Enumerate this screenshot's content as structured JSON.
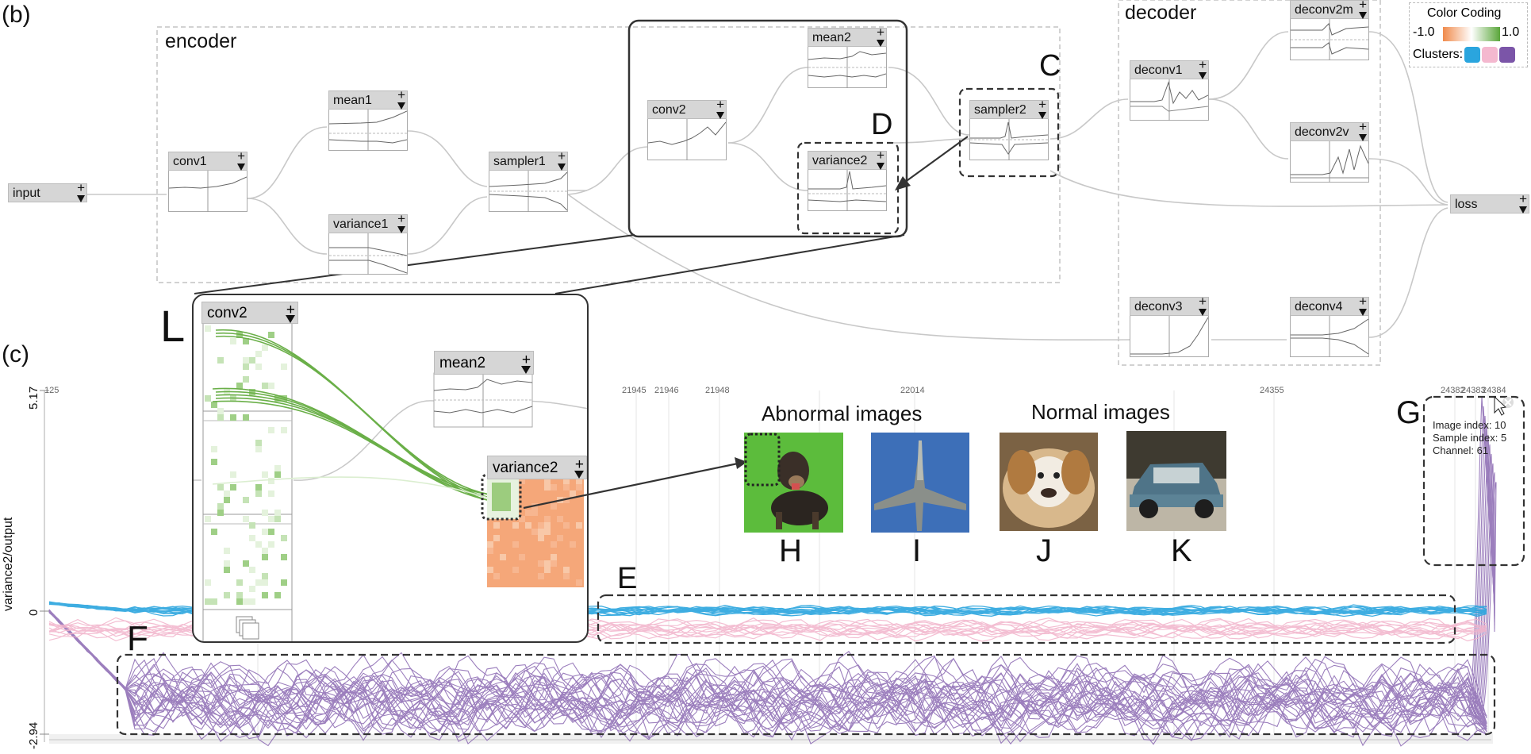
{
  "panel_b_label": "(b)",
  "panel_c_label": "(c)",
  "groups": {
    "encoder": "encoder",
    "decoder": "decoder"
  },
  "nodes": {
    "input": "input",
    "conv1": "conv1",
    "mean1": "mean1",
    "variance1": "variance1",
    "sampler1": "sampler1",
    "conv2": "conv2",
    "mean2": "mean2",
    "variance2": "variance2",
    "sampler2": "sampler2",
    "deconv1": "deconv1",
    "deconv2m": "deconv2m",
    "deconv2v": "deconv2v",
    "loss": "loss",
    "deconv3": "deconv3",
    "deconv4": "deconv4"
  },
  "node_controls": {
    "plus": "+"
  },
  "legend": {
    "title": "Color Coding",
    "min": "-1.0",
    "max": "1.0",
    "clusters_label": "Clusters:",
    "colors": {
      "negative": "#f08a4b",
      "positive": "#5aa63a",
      "cluster1": "#2aa5de",
      "cluster2": "#f4b8cf",
      "cluster3": "#7b55a8"
    }
  },
  "annotations": {
    "C": "C",
    "D": "D",
    "L": "L",
    "E": "E",
    "F": "F",
    "G": "G",
    "H": "H",
    "I": "I",
    "J": "J",
    "K": "K"
  },
  "zoom_nodes": {
    "conv2": "conv2",
    "mean2": "mean2",
    "variance2": "variance2"
  },
  "plot": {
    "ylabel": "variance2/output",
    "ymax": "5.17",
    "yzero": "0",
    "ymin": "-2.94",
    "x_ticks": [
      "125",
      "21945",
      "21946",
      "21948",
      "22014",
      "24355",
      "24382",
      "24383",
      "24384"
    ]
  },
  "images": {
    "abnormal_title": "Abnormal images",
    "normal_title": "Normal images"
  },
  "tooltip": {
    "image_index": "Image index: 10",
    "sample_index": "Sample index: 5",
    "channel": "Channel: 61"
  }
}
